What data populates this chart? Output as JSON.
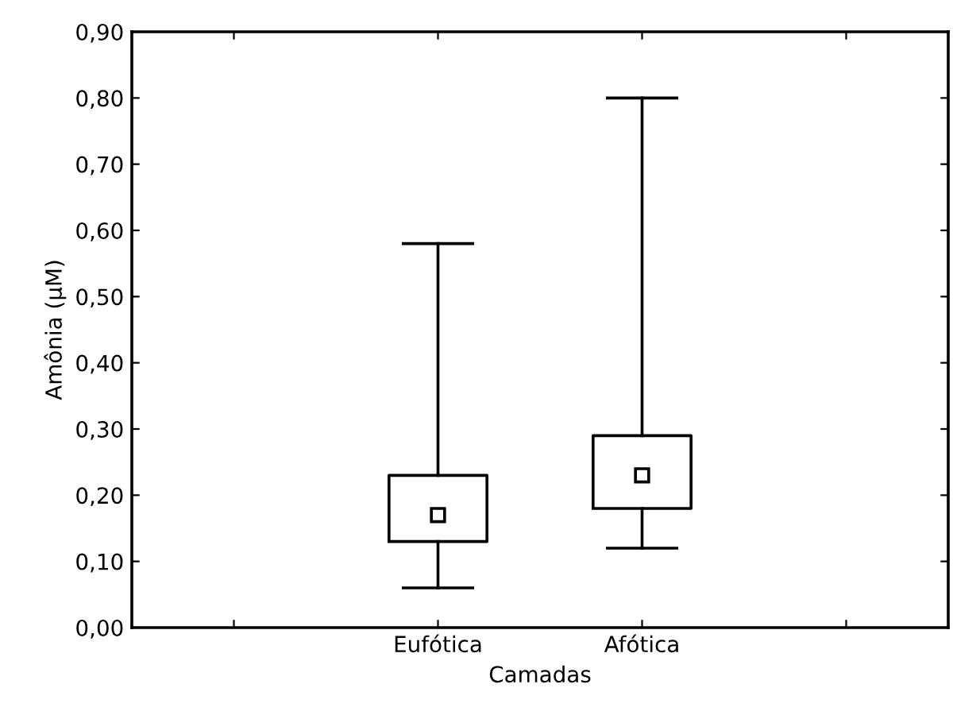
{
  "chart_data": {
    "type": "box",
    "xlabel": "Camadas",
    "ylabel": "Amônia (µM)",
    "categories": [
      null,
      "Eufótica",
      "Afótica",
      null
    ],
    "boxes": [
      null,
      {
        "low": 0.06,
        "q1": 0.13,
        "median": 0.17,
        "q3": 0.23,
        "high": 0.58
      },
      {
        "low": 0.12,
        "q1": 0.18,
        "median": 0.23,
        "q3": 0.29,
        "high": 0.8
      },
      null
    ],
    "color": "#000000",
    "marker": "square",
    "ylim": [
      0,
      0.9
    ],
    "yticks": [
      {
        "value": 0,
        "label": "0,00"
      },
      {
        "value": 0.1,
        "label": "0,10"
      },
      {
        "value": 0.2,
        "label": "0,20"
      },
      {
        "value": 0.3,
        "label": "0,30"
      },
      {
        "value": 0.4,
        "label": "0,40"
      },
      {
        "value": 0.5,
        "label": "0,50"
      },
      {
        "value": 0.6,
        "label": "0,60"
      },
      {
        "value": 0.7,
        "label": "0,70"
      },
      {
        "value": 0.8,
        "label": "0,80"
      },
      {
        "value": 0.9,
        "label": "0,90"
      }
    ],
    "grid": false
  }
}
